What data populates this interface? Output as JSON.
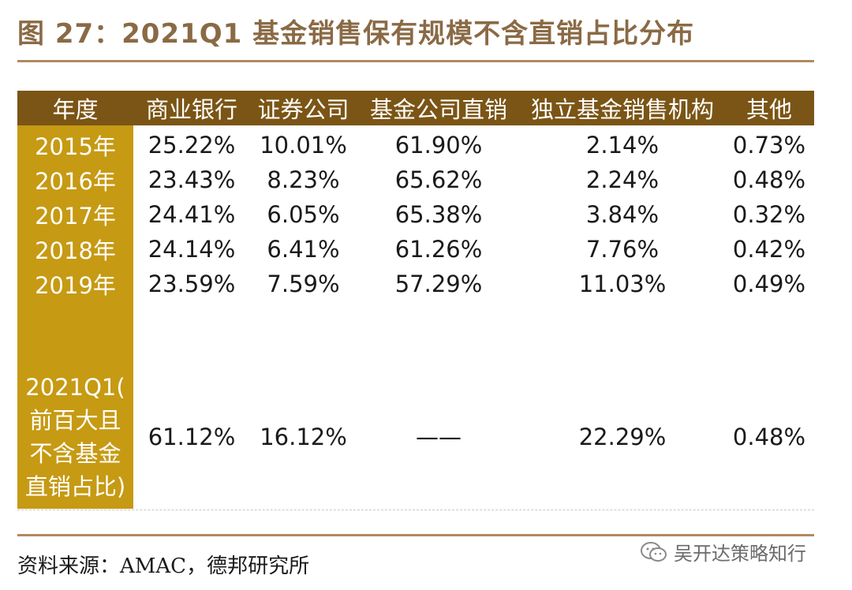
{
  "title": "图 27：2021Q1 基金销售保有规模不含直销占比分布",
  "table": {
    "headers": [
      "年度",
      "商业银行",
      "证券公司",
      "基金公司直销",
      "独立基金销售机构",
      "其他"
    ],
    "rows": [
      {
        "year": "2015年",
        "values": [
          "25.22%",
          "10.01%",
          "61.90%",
          "2.14%",
          "0.73%"
        ]
      },
      {
        "year": "2016年",
        "values": [
          "23.43%",
          "8.23%",
          "65.62%",
          "2.24%",
          "0.48%"
        ]
      },
      {
        "year": "2017年",
        "values": [
          "24.41%",
          "6.05%",
          "65.38%",
          "3.84%",
          "0.32%"
        ]
      },
      {
        "year": "2018年",
        "values": [
          "24.14%",
          "6.41%",
          "61.26%",
          "7.76%",
          "0.42%"
        ]
      },
      {
        "year": "2019年",
        "values": [
          "23.59%",
          "7.59%",
          "57.29%",
          "11.03%",
          "0.49%"
        ]
      }
    ],
    "last_row": {
      "year_lines": [
        "2021Q1(",
        "前百大且",
        "不含基金",
        "直销占比)"
      ],
      "values": [
        "61.12%",
        "16.12%",
        "——",
        "22.29%",
        "0.48%"
      ]
    }
  },
  "source": "资料来源：AMAC，德邦研究所",
  "watermark": "吴开达策略知行",
  "colors": {
    "header_bg": "#7b5515",
    "year_col_bg": "#c69a13",
    "title": "#8a6a45",
    "rule": "#b08a63"
  }
}
